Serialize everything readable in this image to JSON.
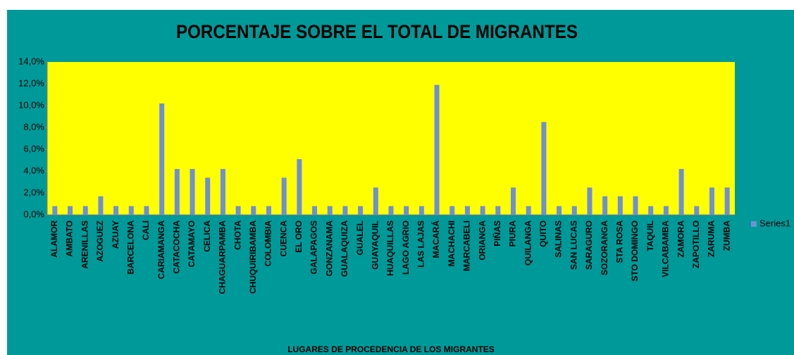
{
  "chart_data": {
    "type": "bar",
    "title": "PORCENTAJE SOBRE EL TOTAL DE MIGRANTES",
    "x_label": "LUGARES DE PROCEDENCIA DE LOS MIGRANTES",
    "categories": [
      "ALAMOR",
      "AMBATO",
      "ARENILLAS",
      "AZOGUEZ",
      "AZUAY",
      "BARCELONA",
      "CALI",
      "CARIAMANGA",
      "CATACOCHA",
      "CATAMAYO",
      "CELICA",
      "CHAGUARPAMBA",
      "CHOTA",
      "CHUQUIRIBAMBA",
      "COLOMBIA",
      "CUENCA",
      "EL ORO",
      "GALAPAGOS",
      "GONZANAMA",
      "GUALAQUIZA",
      "GUALEL",
      "GUAYAQUIL",
      "HUAQUILLAS",
      "LAGO AGRIO",
      "LAS LAJAS",
      "MACARÁ",
      "MACHACHI",
      "MARCABELI",
      "ORIANGA",
      "PIÑAS",
      "PIURA",
      "QUILANGA",
      "QUITO",
      "SALINAS",
      "SAN LUCAS",
      "SARAGURO",
      "SOZORANGA",
      "STA ROSA",
      "STO DOMINGO",
      "TAQUIL",
      "VILCABAMBA",
      "ZAMORA",
      "ZAPOTILLO",
      "ZARUMA",
      "ZUMBA"
    ],
    "series": [
      {
        "name": "Series1",
        "color": "#6f8fd6",
        "values": [
          0.8,
          0.8,
          0.8,
          1.7,
          0.8,
          0.8,
          0.8,
          10.2,
          4.2,
          4.2,
          3.4,
          4.2,
          0.8,
          0.8,
          0.8,
          3.4,
          5.1,
          0.8,
          0.8,
          0.8,
          0.8,
          2.5,
          0.8,
          0.8,
          0.8,
          11.9,
          0.8,
          0.8,
          0.8,
          0.8,
          2.5,
          0.8,
          8.5,
          0.8,
          0.8,
          2.5,
          1.7,
          1.7,
          1.7,
          0.8,
          0.8,
          4.2,
          0.8,
          2.5,
          2.5
        ]
      }
    ],
    "ylim": [
      0,
      14
    ],
    "yticks": [
      {
        "value": 0,
        "label": "0,0%"
      },
      {
        "value": 2,
        "label": "2,0%"
      },
      {
        "value": 4,
        "label": "4,0%"
      },
      {
        "value": 6,
        "label": "6,0%"
      },
      {
        "value": 8,
        "label": "8,0%"
      },
      {
        "value": 10,
        "label": "10,0%"
      },
      {
        "value": 12,
        "label": "12,0%"
      },
      {
        "value": 14,
        "label": "14,0%"
      }
    ],
    "grid": false,
    "legend": "right",
    "plot_color": "#ffff00",
    "background": "#009999"
  }
}
